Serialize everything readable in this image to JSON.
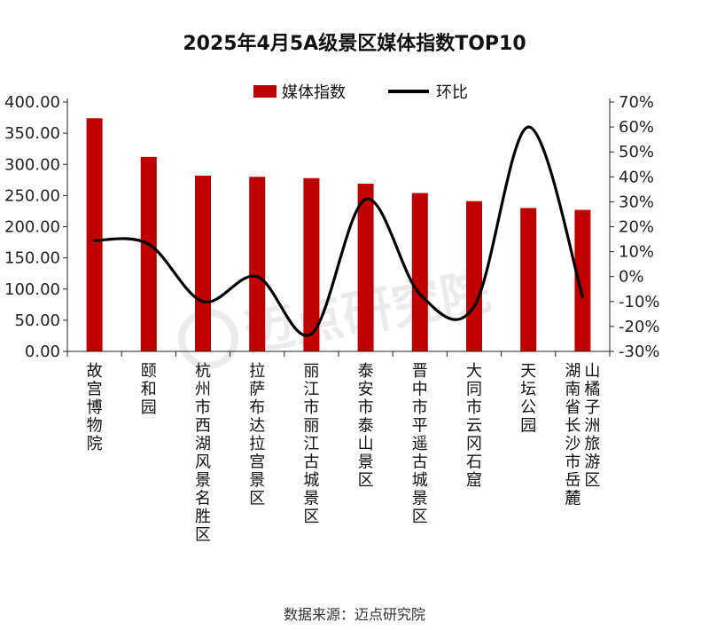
{
  "chart_data": {
    "type": "bar",
    "title": "2025年4月5A级景区媒体指数TOP10",
    "categories": [
      "故宫博物院",
      "颐和园",
      "杭州市西湖风景名胜区",
      "拉萨布达拉宫景区",
      "丽江市丽江古城景区",
      "泰安市泰山景区",
      "晋中市平遥古城景区",
      "大同市云冈石窟",
      "天坛公园",
      "湖南省长沙市岳麓山橘子洲旅游区"
    ],
    "category_lines": [
      [
        "故宫博物院"
      ],
      [
        "颐和园"
      ],
      [
        "杭州市西湖风景名胜区"
      ],
      [
        "拉萨布达拉宫景区"
      ],
      [
        "丽江市丽江古城景区"
      ],
      [
        "泰安市泰山景区"
      ],
      [
        "晋中市平遥古城景区"
      ],
      [
        "大同市云冈石窟"
      ],
      [
        "天坛公园"
      ],
      [
        "湖南省长沙市岳麓",
        "山橘子洲旅游区"
      ]
    ],
    "series": [
      {
        "name": "媒体指数",
        "type": "bar",
        "axis": "left",
        "values": [
          374,
          312,
          282,
          280,
          278,
          269,
          254,
          241,
          230,
          227
        ]
      },
      {
        "name": "环比",
        "type": "line",
        "axis": "right",
        "values": [
          14.5,
          13,
          -10,
          0,
          -23,
          31,
          -7,
          -12,
          60,
          -8
        ]
      }
    ],
    "left_axis": {
      "min": 0,
      "max": 400,
      "step": 50,
      "ticks": [
        "0.00",
        "50.00",
        "100.00",
        "150.00",
        "200.00",
        "250.00",
        "300.00",
        "350.00",
        "400.00"
      ]
    },
    "right_axis": {
      "min": -30,
      "max": 70,
      "step": 10,
      "ticks": [
        "-30%",
        "-20%",
        "-10%",
        "0%",
        "10%",
        "20%",
        "30%",
        "40%",
        "50%",
        "60%",
        "70%"
      ]
    },
    "grid": false,
    "legend_position": "top-center",
    "colors": {
      "bar": "#c00000",
      "line": "#000000",
      "axis": "#222222"
    },
    "source": "数据来源：迈点研究院",
    "watermark": "迈点研究院"
  }
}
